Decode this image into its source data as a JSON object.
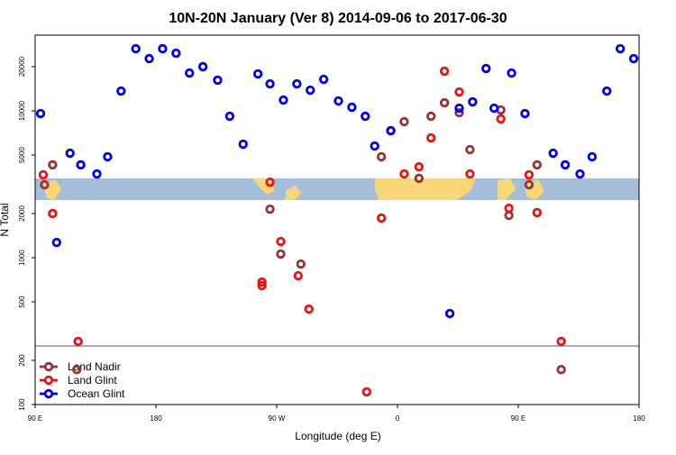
{
  "chart_data": {
    "type": "scatter",
    "title": "10N-20N January (Ver 8)   2014-09-06 to 2017-06-30",
    "x_label": "Longitude (deg E)",
    "y_label": "N Total",
    "y_log": true,
    "legend": "bottom-left",
    "xlim": [
      90,
      540
    ],
    "xticks": [
      {
        "value": 90,
        "label": "90 E"
      },
      {
        "value": 180,
        "label": "180"
      },
      {
        "value": 270,
        "label": "90 W"
      },
      {
        "value": 360,
        "label": "0"
      },
      {
        "value": 450,
        "label": "90 E"
      },
      {
        "value": 540,
        "label": "180"
      }
    ],
    "ylim": [
      100,
      32800
    ],
    "yticks": [
      100,
      200,
      500,
      1000,
      2000,
      5000,
      10000,
      20000
    ],
    "series": [
      {
        "name": "Land Nadir",
        "color": "#993333",
        "x": [
          97,
          103,
          121,
          265,
          273,
          288,
          348,
          365,
          376,
          385,
          395,
          406,
          414,
          437,
          443,
          458,
          464,
          482
        ],
        "values": [
          3140,
          4290,
          173,
          2140,
          1060,
          906,
          4870,
          8440,
          3470,
          9190,
          11350,
          9720,
          5450,
          10140,
          1940,
          3140,
          4290,
          173
        ]
      },
      {
        "name": "Land Glint",
        "color": "#ee1111",
        "x": [
          96,
          103,
          122,
          259,
          259,
          265,
          273,
          286,
          294,
          337,
          348,
          355,
          365,
          376,
          385,
          395,
          406,
          414,
          437,
          443,
          458,
          464,
          482
        ],
        "values": [
          3670,
          2000,
          269,
          683,
          645,
          3270,
          1290,
          754,
          447,
          122,
          1860,
          7330,
          3720,
          4160,
          6550,
          18620,
          13450,
          3720,
          8810,
          2170,
          3670,
          2030,
          269
        ]
      },
      {
        "name": "Ocean Glint",
        "color": "#0000ee",
        "x": [
          94,
          106,
          116,
          124,
          136,
          144,
          154,
          165,
          175,
          185,
          195,
          205,
          215,
          226,
          235,
          245,
          256,
          265,
          275,
          285,
          295,
          305,
          316,
          326,
          336,
          343,
          355,
          399,
          406,
          416,
          426,
          432,
          445,
          455,
          476,
          485,
          496,
          505,
          516,
          526,
          536
        ],
        "values": [
          9590,
          1270,
          5150,
          4290,
          3720,
          4870,
          13650,
          26500,
          22700,
          26500,
          24700,
          18100,
          20000,
          16200,
          9190,
          5930,
          17850,
          15280,
          11850,
          15280,
          13840,
          16400,
          11680,
          10590,
          9190,
          5760,
          7330,
          417,
          10430,
          11520,
          19420,
          10430,
          18100,
          9590,
          5150,
          4290,
          3720,
          4870,
          13650,
          26500,
          22700
        ]
      }
    ]
  }
}
